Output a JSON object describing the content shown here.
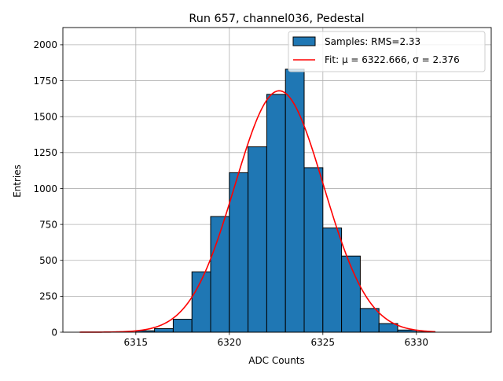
{
  "chart_data": {
    "type": "bar",
    "title": "Run 657, channel036, Pedestal",
    "xlabel": "ADC Counts",
    "ylabel": "Entries",
    "xlim": [
      6311.1,
      6334.0
    ],
    "ylim": [
      0,
      2120
    ],
    "xticks": [
      6315,
      6320,
      6325,
      6330
    ],
    "yticks": [
      0,
      250,
      500,
      750,
      1000,
      1250,
      1500,
      1750,
      2000
    ],
    "grid": true,
    "legend_position": "top-right",
    "histogram": {
      "name": "Samples: RMS=2.33",
      "color": "#1f77b4",
      "edge_color": "#000000",
      "bin_width": 1,
      "bin_edges_start": 6315,
      "counts": [
        10,
        25,
        90,
        420,
        805,
        1110,
        1290,
        1655,
        1830,
        1145,
        725,
        530,
        165,
        60,
        15,
        2,
        0,
        0
      ]
    },
    "fit": {
      "name_prefix": "Fit: ",
      "name_mu": "μ = 6322.666",
      "name_sep": ", ",
      "name_sigma": "σ = 2.376",
      "color": "#ff0000",
      "mu": 6322.666,
      "sigma": 2.376,
      "amplitude": 1680,
      "x_range": [
        6312,
        6331
      ]
    }
  }
}
